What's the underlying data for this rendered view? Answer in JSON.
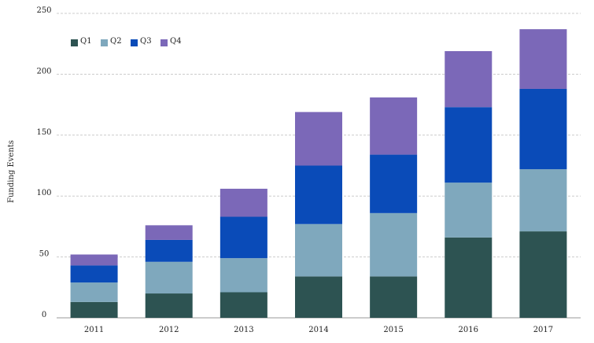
{
  "chart_data": {
    "type": "bar",
    "stacked": true,
    "title": "",
    "xlabel": "",
    "ylabel": "Funding Events",
    "categories": [
      "2011",
      "2012",
      "2013",
      "2014",
      "2015",
      "2016",
      "2017"
    ],
    "ylim": [
      0,
      250
    ],
    "yticks": [
      0,
      50,
      100,
      150,
      200,
      250
    ],
    "grid": true,
    "legend_position": "top-left",
    "series": [
      {
        "name": "Q1",
        "color": "#2d5352",
        "values": [
          13,
          20,
          21,
          34,
          34,
          66,
          71
        ]
      },
      {
        "name": "Q2",
        "color": "#7fa8bd",
        "values": [
          16,
          26,
          28,
          43,
          52,
          45,
          51
        ]
      },
      {
        "name": "Q3",
        "color": "#0a4bb8",
        "values": [
          14,
          18,
          34,
          48,
          48,
          62,
          66
        ]
      },
      {
        "name": "Q4",
        "color": "#7b68b8",
        "values": [
          9,
          12,
          23,
          44,
          47,
          46,
          49
        ]
      }
    ]
  }
}
